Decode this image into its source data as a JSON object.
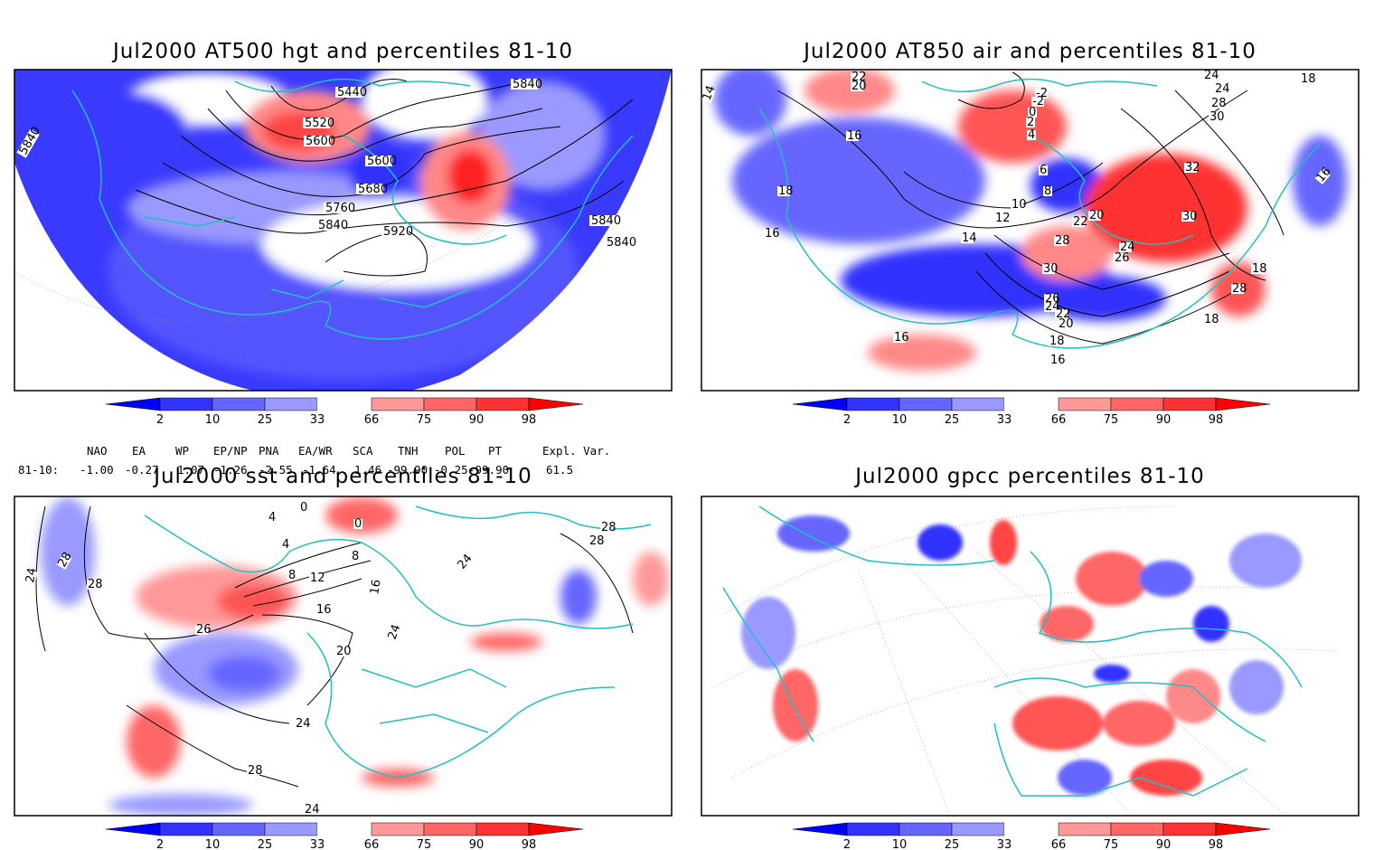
{
  "panels": [
    {
      "id": "hgt",
      "title": "Jul2000 AT500 hgt and percentiles 81-10",
      "contour_labels": [
        "5440",
        "5520",
        "5600",
        "5600",
        "5680",
        "5760",
        "5840",
        "5840",
        "5840",
        "5840",
        "5840",
        "5920"
      ]
    },
    {
      "id": "air",
      "title": "Jul2000 AT850 air and percentiles 81-10",
      "contour_labels": [
        "22",
        "20",
        "14",
        "16",
        "18",
        "16",
        "-2",
        "-2",
        "0",
        "2",
        "4",
        "6",
        "8",
        "10",
        "12",
        "14",
        "22",
        "20",
        "28",
        "30",
        "24",
        "26",
        "26",
        "24",
        "22",
        "20",
        "18",
        "16",
        "16",
        "24",
        "24",
        "28",
        "30",
        "32",
        "30",
        "18",
        "28",
        "18",
        "18",
        "16"
      ]
    },
    {
      "id": "sst",
      "title": "Jul2000 sst and percentiles 81-10",
      "contour_labels": [
        "24",
        "28",
        "28",
        "26",
        "0",
        "4",
        "4",
        "8",
        "12",
        "16",
        "20",
        "24",
        "24",
        "28",
        "24",
        "28",
        "28",
        "24",
        "8",
        "16",
        "0"
      ]
    },
    {
      "id": "gpcc",
      "title": "Jul2000 gpcc percentiles 81-10",
      "contour_labels": []
    }
  ],
  "colorbar": {
    "labels": [
      "2",
      "10",
      "25",
      "33",
      "66",
      "75",
      "90",
      "98"
    ],
    "colors": [
      "#0000ff",
      "#3333ff",
      "#6666ff",
      "#9999ff",
      "#ffffff",
      "#ff9999",
      "#ff6666",
      "#ff3333",
      "#ff0000"
    ]
  },
  "indices": {
    "headers": [
      "NAO",
      "EA",
      "WP",
      "EP/NP",
      "PNA",
      "EA/WR",
      "SCA",
      "TNH",
      "POL",
      "PT",
      "Expl. Var."
    ],
    "row_label": "81-10:",
    "values": [
      "-1.00",
      "-0.27",
      "1.07",
      "-1.26",
      "-2.55",
      "-1.64",
      "1.46",
      "-99.90",
      "-0.25",
      "-99.90",
      "61.5"
    ]
  },
  "colors": {
    "land_outline": "#20c0c0",
    "contour": "#000000",
    "frame": "#000000"
  }
}
